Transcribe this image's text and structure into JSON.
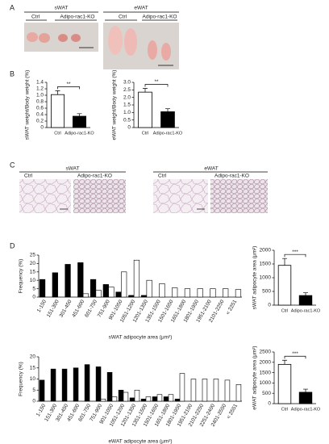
{
  "figure": {
    "panel_labels": [
      "A",
      "B",
      "C",
      "D"
    ],
    "A": {
      "swat": {
        "title": "sWAT",
        "ctrl": "Ctrl",
        "ko": "Adipo-rac1-KO"
      },
      "ewat": {
        "title": "eWAT",
        "ctrl": "Ctrl",
        "ko": "Adipo-rac1-KO"
      }
    },
    "C": {
      "swat": {
        "title": "sWAT",
        "ctrl": "Ctrl",
        "ko": "Adipo-rac1-KO"
      },
      "ewat": {
        "title": "eWAT",
        "ctrl": "Ctrl",
        "ko": "Adipo-rac1-KO"
      }
    }
  },
  "chart_data": [
    {
      "type": "bar",
      "y_label": "sWAT weight/Body weight (%)",
      "categories": [
        "Ctrl",
        "Adipo-rac1-KO"
      ],
      "values": [
        1.02,
        0.35
      ],
      "errors": [
        0.12,
        0.08
      ],
      "colors": [
        "#ffffff",
        "#000000"
      ],
      "ylim": [
        0,
        1.4
      ],
      "yticks": [
        0,
        0.2,
        0.4,
        0.6,
        0.8,
        {
          "value": 1,
          "label": "1.0"
        },
        1.2,
        1.4
      ],
      "annotation": "**"
    },
    {
      "type": "bar",
      "y_label": "eWAT weight/Body weight (%)",
      "categories": [
        "Ctrl",
        "Adipo-rac1-KO"
      ],
      "values": [
        2.35,
        1.05
      ],
      "errors": [
        0.25,
        0.2
      ],
      "colors": [
        "#ffffff",
        "#000000"
      ],
      "ylim": [
        0,
        3
      ],
      "yticks": [
        0,
        0.5,
        {
          "value": 1,
          "label": "1.0"
        },
        1.5,
        {
          "value": 2,
          "label": "2.0"
        },
        2.5,
        {
          "value": 3,
          "label": "3.0"
        }
      ],
      "annotation": "**"
    },
    {
      "type": "bar",
      "y_label": "Frequency (%)",
      "x_label": "sWAT adipocyte area (μm²)",
      "categories": [
        "1-150",
        "151-300",
        "301-450",
        "451-600",
        "601-750",
        "751-900",
        "901-1050",
        "1051-1200",
        "1201-1350",
        "1351-1500",
        "1501-1650",
        "1651-1800",
        "1801-1950",
        "1951-2100",
        "2101-2250",
        "< 2251"
      ],
      "series": [
        {
          "color": "#000000",
          "values": [
            10.5,
            14.5,
            19.5,
            20.5,
            10.5,
            7.5,
            3,
            1,
            1,
            0,
            0,
            0,
            0,
            0,
            0,
            0
          ]
        },
        {
          "color": "#ffffff",
          "values": [
            0,
            0,
            0,
            2,
            4,
            6,
            15,
            22,
            10,
            8,
            5.5,
            5,
            5,
            5,
            5,
            4.5
          ]
        }
      ],
      "ylim": [
        0,
        25
      ],
      "yticks": [
        0,
        5,
        10,
        15,
        20,
        25
      ]
    },
    {
      "type": "bar",
      "y_label": "sWAT adipocyte area (μm²)",
      "categories": [
        "Ctrl",
        "Adipo-rac1-KO"
      ],
      "values": [
        1450,
        350
      ],
      "errors": [
        250,
        100
      ],
      "colors": [
        "#ffffff",
        "#000000"
      ],
      "ylim": [
        0,
        2000
      ],
      "yticks": [
        0,
        500,
        1000,
        1500,
        2000
      ],
      "annotation": "***"
    },
    {
      "type": "bar",
      "y_label": "Frequency (%)",
      "x_label": "eWAT adipocyte area (μm²)",
      "categories": [
        "1-150",
        "151-300",
        "301-450",
        "451-600",
        "601-750",
        "751-900",
        "901-1050",
        "1051-1200",
        "1201-1350",
        "1351-1500",
        "1501-1650",
        "1651-1800",
        "1801-1950",
        "1951-2100",
        "2101-2250",
        "2251-2400",
        "2401-2550",
        "< 2551"
      ],
      "series": [
        {
          "color": "#000000",
          "values": [
            9.5,
            14.5,
            14.5,
            15,
            16.5,
            15.5,
            13,
            5,
            1.5,
            1,
            2,
            2,
            1,
            0,
            0,
            0,
            0,
            0
          ]
        },
        {
          "color": "#ffffff",
          "values": [
            0,
            0,
            0,
            0,
            0,
            1,
            2,
            4,
            5,
            2,
            3,
            3,
            12.5,
            10,
            10,
            10,
            9.5,
            7.5
          ]
        }
      ],
      "ylim": [
        0,
        20
      ],
      "yticks": [
        0,
        5,
        10,
        15,
        20
      ]
    },
    {
      "type": "bar",
      "y_label": "eWAT adipocyte area (μm²)",
      "categories": [
        "Ctrl",
        "Adipo-rac1-KO"
      ],
      "values": [
        1900,
        550
      ],
      "errors": [
        200,
        150
      ],
      "colors": [
        "#ffffff",
        "#000000"
      ],
      "ylim": [
        0,
        2500
      ],
      "yticks": [
        0,
        500,
        1000,
        1500,
        2000,
        2500
      ],
      "annotation": "***"
    }
  ]
}
